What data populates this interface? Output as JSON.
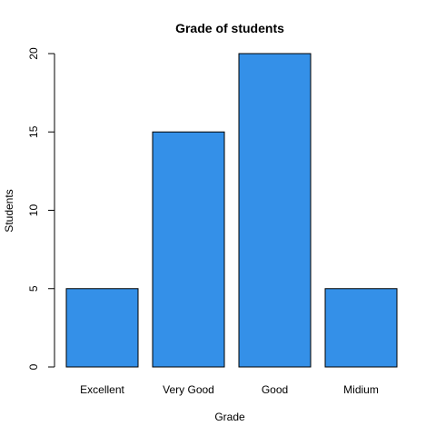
{
  "chart_data": {
    "type": "bar",
    "title": "Grade of students",
    "xlabel": "Grade",
    "ylabel": "Students",
    "categories": [
      "Excellent",
      "Very Good",
      "Good",
      "Midium"
    ],
    "values": [
      5,
      15,
      20,
      5
    ],
    "ylim": [
      0,
      20
    ],
    "yticks": [
      0,
      5,
      10,
      15,
      20
    ],
    "bar_color": "#3490E8",
    "bar_border_color": "#000000",
    "grid": false,
    "legend": "none"
  }
}
